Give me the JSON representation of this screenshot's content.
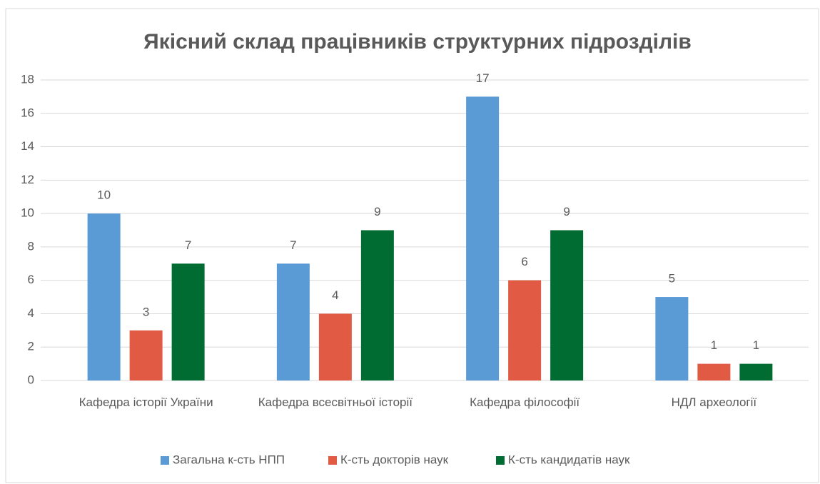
{
  "chart_data": {
    "type": "bar",
    "title": "Якісний склад працівників структурних підрозділів",
    "categories": [
      "Кафедра історії України",
      "Кафедра всесвітньої історії",
      "Кафедра філософії",
      "НДЛ археології"
    ],
    "series": [
      {
        "name": "Загальна к-сть НПП",
        "color": "#5b9bd5",
        "values": [
          10,
          7,
          17,
          5
        ]
      },
      {
        "name": "К-сть докторів наук",
        "color": "#e05a44",
        "values": [
          3,
          4,
          6,
          1
        ]
      },
      {
        "name": "К-сть кандидатів наук",
        "color": "#006c31",
        "values": [
          7,
          9,
          9,
          1
        ]
      }
    ],
    "ylim": [
      0,
      18
    ],
    "yticks": [
      0,
      2,
      4,
      6,
      8,
      10,
      12,
      14,
      16,
      18
    ],
    "grid": true,
    "legend": "bottom"
  }
}
